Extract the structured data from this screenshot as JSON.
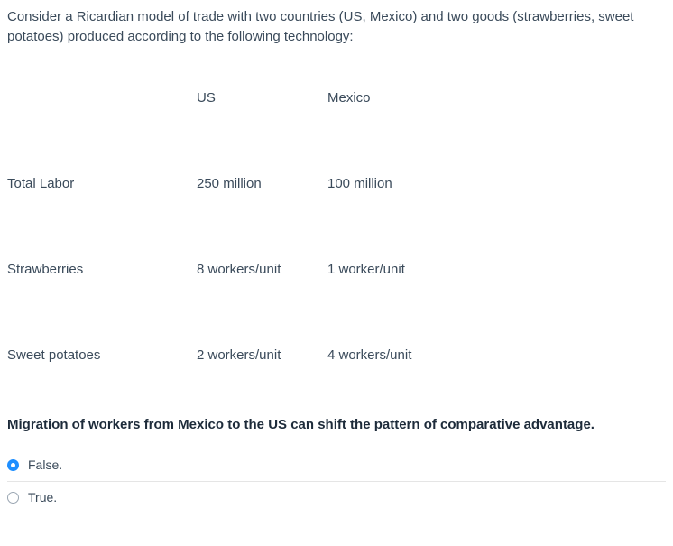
{
  "intro": "Consider a Ricardian model of trade with two countries (US, Mexico) and two goods (strawberries, sweet potatoes) produced according to the following technology:",
  "table": {
    "headers": {
      "label": "",
      "us": "US",
      "mx": "Mexico"
    },
    "rows": [
      {
        "label": "Total Labor",
        "us": "250 million",
        "mx": "100 million"
      },
      {
        "label": "Strawberries",
        "us": "8 workers/unit",
        "mx": "1 worker/unit"
      },
      {
        "label": "Sweet potatoes",
        "us": "2 workers/unit",
        "mx": "4 workers/unit"
      }
    ]
  },
  "statement": "Migration of workers from Mexico to the US can shift the pattern of comparative advantage.",
  "options": [
    {
      "label": "False.",
      "selected": true
    },
    {
      "label": "True.",
      "selected": false
    }
  ]
}
